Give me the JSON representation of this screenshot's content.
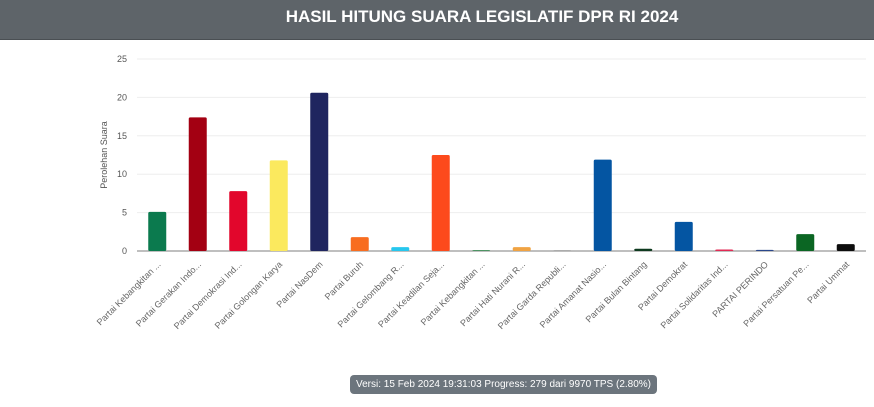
{
  "header": {
    "title": "HASIL HITUNG SUARA LEGISLATIF DPR RI 2024"
  },
  "footer": {
    "version_text": "Versi: 15 Feb 2024 19:31:03 Progress: 279 dari 9970 TPS (2.80%)"
  },
  "chart_data": {
    "type": "bar",
    "title": "",
    "xlabel": "",
    "ylabel": "Perolehan Suara",
    "ylim": [
      0,
      25
    ],
    "yticks": [
      0,
      5,
      10,
      15,
      20,
      25
    ],
    "grid": true,
    "categories": [
      "Partai Kebangkitan ...",
      "Partai Gerakan Indo...",
      "Partai Demokrasi Ind...",
      "Partai Golongan Karya",
      "Partai NasDem",
      "Partai Buruh",
      "Partai Gelombang R...",
      "Partai Keadilan Seja...",
      "Partai Kebangkitan ...",
      "Partai Hati Nurani R...",
      "Partai Garda Republi...",
      "Partai Amanat Nasio...",
      "Partai Bulan Bintang",
      "Partai Demokrat",
      "Partai Solidaritas Ind...",
      "PARTAI PERINDO",
      "Partai Persatuan Pe...",
      "Partai Ummat"
    ],
    "values": [
      5.1,
      17.4,
      7.8,
      11.8,
      20.6,
      1.8,
      0.5,
      12.5,
      0.05,
      0.5,
      0.1,
      11.9,
      0.3,
      3.8,
      0.2,
      0.15,
      2.2,
      0.9
    ],
    "colors": [
      "#0b7a4e",
      "#a30012",
      "#e2062c",
      "#fbe95e",
      "#1f255f",
      "#f86d20",
      "#27c7ee",
      "#fd4a1c",
      "#1d7a3a",
      "#f0a343",
      "#9a9a9a",
      "#0455a2",
      "#0e3a1f",
      "#0455a2",
      "#e22a54",
      "#2a478b",
      "#0b6623",
      "#0d0d0d"
    ]
  }
}
